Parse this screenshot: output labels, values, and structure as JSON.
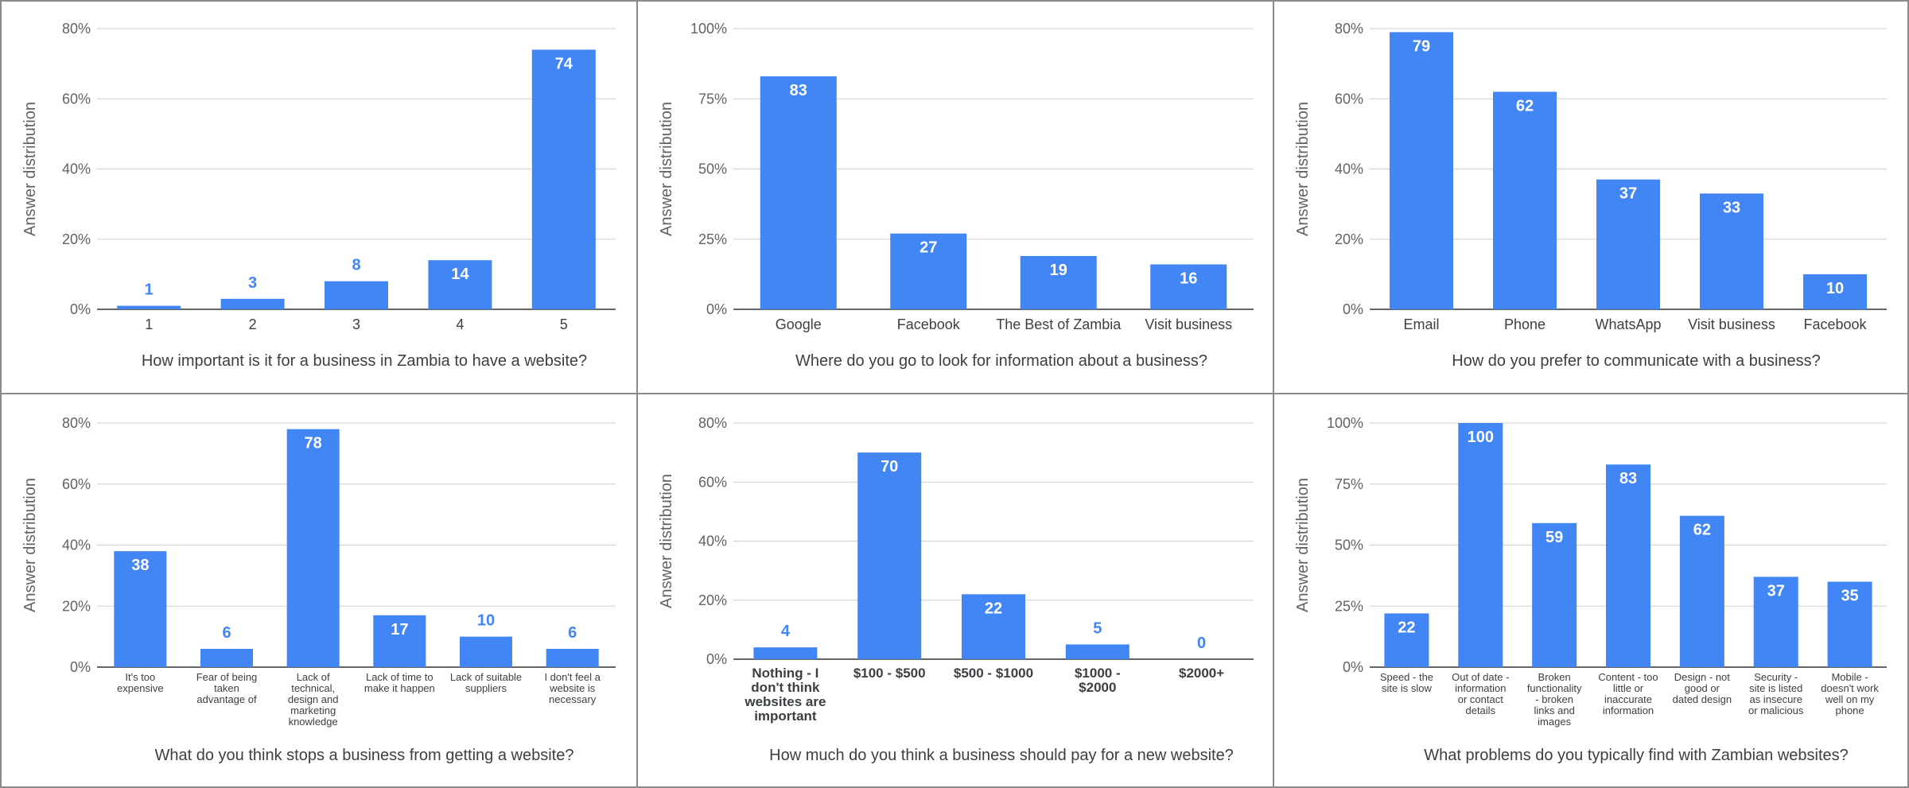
{
  "chart_data": [
    {
      "type": "bar",
      "title": "How important is it for a business in Zambia to have a website?",
      "ylabel": "Answer distribution",
      "ylim": [
        0,
        80
      ],
      "yticks": [
        "0%",
        "20%",
        "40%",
        "60%",
        "80%"
      ],
      "categories": [
        [
          "1"
        ],
        [
          "2"
        ],
        [
          "3"
        ],
        [
          "4"
        ],
        [
          "5"
        ]
      ],
      "values": [
        1,
        3,
        8,
        14,
        74
      ],
      "labels": [
        "1",
        "3",
        "8",
        "14",
        "74"
      ],
      "color": "#4285f4",
      "grid": true
    },
    {
      "type": "bar",
      "title": "Where do you go to look for information about a business?",
      "ylabel": "Answer distribution",
      "ylim": [
        0,
        100
      ],
      "yticks": [
        "0%",
        "25%",
        "50%",
        "75%",
        "100%"
      ],
      "categories": [
        [
          "Google"
        ],
        [
          "Facebook"
        ],
        [
          "The Best of Zambia"
        ],
        [
          "Visit business"
        ]
      ],
      "values": [
        83,
        27,
        19,
        16
      ],
      "labels": [
        "83",
        "27",
        "19",
        "16"
      ],
      "color": "#4285f4",
      "grid": true
    },
    {
      "type": "bar",
      "title": "How do you prefer to communicate with a business?",
      "ylabel": "Answer distribution",
      "ylim": [
        0,
        80
      ],
      "yticks": [
        "0%",
        "20%",
        "40%",
        "60%",
        "80%"
      ],
      "categories": [
        [
          "Email"
        ],
        [
          "Phone"
        ],
        [
          "WhatsApp"
        ],
        [
          "Visit business"
        ],
        [
          "Facebook"
        ]
      ],
      "values": [
        79,
        62,
        37,
        33,
        10
      ],
      "labels": [
        "79",
        "62",
        "37",
        "33",
        "10"
      ],
      "color": "#4285f4",
      "grid": true
    },
    {
      "type": "bar",
      "title": "What do you think stops a business from getting a website?",
      "ylabel": "Answer distribution",
      "ylim": [
        0,
        80
      ],
      "yticks": [
        "0%",
        "20%",
        "40%",
        "60%",
        "80%"
      ],
      "categories": [
        [
          "It's too",
          "expensive"
        ],
        [
          "Fear of being",
          "taken",
          "advantage of"
        ],
        [
          "Lack of",
          "technical,",
          "design and",
          "marketing",
          "knowledge"
        ],
        [
          "Lack of time to",
          "make it happen"
        ],
        [
          "Lack of suitable",
          "suppliers"
        ],
        [
          "I don't feel a",
          "website is",
          "necessary"
        ]
      ],
      "values": [
        38,
        6,
        78,
        17,
        10,
        6
      ],
      "labels": [
        "38",
        "6",
        "78",
        "17",
        "10",
        "6"
      ],
      "color": "#4285f4",
      "grid": true
    },
    {
      "type": "bar",
      "title": "How much do you think a business should pay for a new website?",
      "ylabel": "Answer distribution",
      "ylim": [
        0,
        80
      ],
      "yticks": [
        "0%",
        "20%",
        "40%",
        "60%",
        "80%"
      ],
      "categories": [
        [
          "Nothing - I",
          "don't think",
          "websites are",
          "important"
        ],
        [
          "$100 - $500"
        ],
        [
          "$500 - $1000"
        ],
        [
          "$1000 -",
          "$2000"
        ],
        [
          "$2000+"
        ]
      ],
      "values": [
        4,
        70,
        22,
        5,
        0
      ],
      "labels": [
        "4",
        "70",
        "22",
        "5",
        "0"
      ],
      "color": "#4285f4",
      "grid": true
    },
    {
      "type": "bar",
      "title": "What problems do you typically find with Zambian websites?",
      "ylabel": "Answer distribution",
      "ylim": [
        0,
        100
      ],
      "yticks": [
        "0%",
        "25%",
        "50%",
        "75%",
        "100%"
      ],
      "categories": [
        [
          "Speed - the",
          "site is slow"
        ],
        [
          "Out of date -",
          "information",
          "or contact",
          "details"
        ],
        [
          "Broken",
          "functionality",
          "- broken",
          "links and",
          "images"
        ],
        [
          "Content - too",
          "little or",
          "inaccurate",
          "information"
        ],
        [
          "Design - not",
          "good or",
          "dated design"
        ],
        [
          "Security -",
          "site is listed",
          "as insecure",
          "or malicious"
        ],
        [
          "Mobile -",
          "doesn't work",
          "well on my",
          "phone"
        ]
      ],
      "values": [
        22,
        100,
        59,
        83,
        62,
        37,
        35
      ],
      "labels": [
        "22",
        "100",
        "59",
        "83",
        "62",
        "37",
        "35"
      ],
      "color": "#4285f4",
      "grid": true
    }
  ]
}
